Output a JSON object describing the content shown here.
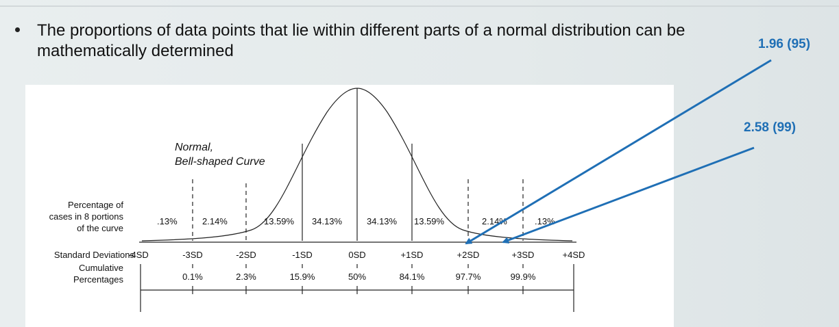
{
  "bullet": {
    "text_line1": "The proportions of data points that lie within different parts of a normal distribution can be",
    "text_line2": "mathematically determined"
  },
  "figure": {
    "curve_label_line1": "Normal,",
    "curve_label_line2": "Bell-shaped Curve",
    "percentage_label": [
      "Percentage of",
      "cases in 8 portions",
      "of the curve"
    ],
    "sd_row_label": "Standard Deviations",
    "cumulative_label": [
      "Cumulative",
      "Percentages"
    ],
    "sd_ticks": [
      "-4SD",
      "-3SD",
      "-2SD",
      "-1SD",
      "0SD",
      "+1SD",
      "+2SD",
      "+3SD",
      "+4SD"
    ],
    "portions": [
      ".13%",
      "2.14%",
      "13.59%",
      "34.13%",
      "34.13%",
      "13.59%",
      "2.14%",
      ".13%"
    ],
    "cumulative": [
      "0.1%",
      "2.3%",
      "15.9%",
      "50%",
      "84.1%",
      "97.7%",
      "99.9%"
    ]
  },
  "callouts": {
    "c95": "1.96 (95)",
    "c99": "2.58 (99)",
    "color": "#1f6fb5"
  }
}
